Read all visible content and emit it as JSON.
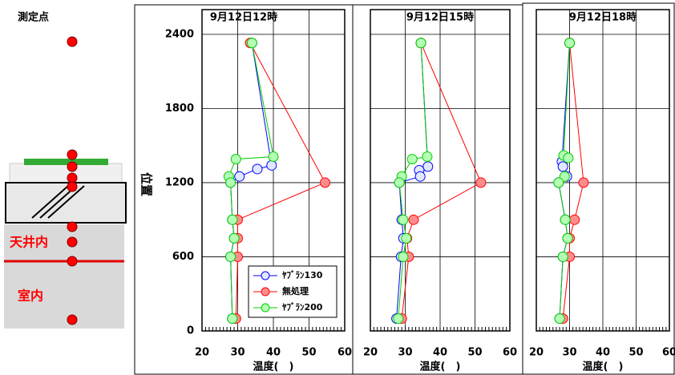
{
  "diagram": {
    "title": "測定点",
    "labels": [
      "天井内",
      "室内"
    ]
  },
  "chart_data": [
    {
      "type": "line",
      "title": "9月12日12時",
      "x_label": "温度(　)",
      "y_label": "位置",
      "xlim": [
        20,
        60
      ],
      "xticks": [
        20,
        30,
        40,
        50,
        60
      ],
      "ylim": [
        0,
        2600
      ],
      "yticks": [
        0,
        600,
        1200,
        1800,
        2400
      ],
      "ytick_labels": true,
      "grid": true,
      "legend": true,
      "series": [
        {
          "name": "ﾔﾌﾞﾗﾝ130",
          "color": "#0000ff",
          "fill": "#e0e8ff",
          "x": [
            34,
            39.5,
            35.5,
            30.5,
            28,
            28.5,
            29,
            28,
            28.5
          ],
          "values": [
            2330,
            1340,
            1310,
            1250,
            1200,
            900,
            750,
            600,
            100
          ]
        },
        {
          "name": "無処理",
          "color": "#ff0000",
          "fill": "#ff8c8c",
          "x": [
            33.5,
            54.5,
            30,
            30,
            30,
            29.5
          ],
          "values": [
            2330,
            1200,
            900,
            750,
            600,
            100
          ]
        },
        {
          "name": "ﾔﾌﾞﾗﾝ200",
          "color": "#00cc00",
          "fill": "#b4ffb4",
          "x": [
            34,
            40,
            29.5,
            27.5,
            28,
            28.5,
            29,
            28,
            28.5
          ],
          "values": [
            2330,
            1410,
            1390,
            1250,
            1200,
            900,
            750,
            600,
            100
          ]
        }
      ]
    },
    {
      "type": "line",
      "title": "9月12日15時",
      "x_label": "温度(　)",
      "xlim": [
        20,
        60
      ],
      "xticks": [
        20,
        30,
        40,
        50,
        60
      ],
      "ylim": [
        0,
        2600
      ],
      "yticks": [
        0,
        600,
        1200,
        1800,
        2400
      ],
      "ytick_labels": false,
      "grid": true,
      "legend": false,
      "series": [
        {
          "name": "ﾔﾌﾞﾗﾝ130",
          "color": "#0000ff",
          "fill": "#e0e8ff",
          "x": [
            34.5,
            36.5,
            34,
            34.3,
            28.3,
            29,
            29.5,
            28.8,
            27.5
          ],
          "values": [
            2330,
            1330,
            1300,
            1250,
            1200,
            900,
            750,
            600,
            100
          ]
        },
        {
          "name": "無処理",
          "color": "#ff0000",
          "fill": "#ff8c8c",
          "x": [
            34.5,
            51.7,
            32.4,
            30.5,
            31,
            29
          ],
          "values": [
            2330,
            1200,
            900,
            750,
            600,
            100
          ]
        },
        {
          "name": "ﾔﾌﾞﾗﾝ200",
          "color": "#00cc00",
          "fill": "#b4ffb4",
          "x": [
            34.5,
            36.3,
            32,
            29,
            28.3,
            29.4,
            30.3,
            29.4,
            28
          ],
          "values": [
            2330,
            1410,
            1390,
            1250,
            1200,
            900,
            750,
            600,
            100
          ]
        }
      ]
    },
    {
      "type": "line",
      "title": "9月12日18時",
      "x_label": "温度(　)",
      "xlim": [
        20,
        60
      ],
      "xticks": [
        20,
        30,
        40,
        50,
        60
      ],
      "ylim": [
        0,
        2600
      ],
      "yticks": [
        0,
        600,
        1200,
        1800,
        2400
      ],
      "ytick_labels": false,
      "grid": true,
      "legend": false,
      "series": [
        {
          "name": "ﾔﾌﾞﾗﾝ130",
          "color": "#0000ff",
          "fill": "#e0e8ff",
          "x": [
            30,
            27.7,
            28,
            29.2,
            26.7,
            28.7,
            29.4,
            28,
            27
          ],
          "values": [
            2330,
            1370,
            1330,
            1250,
            1200,
            900,
            750,
            600,
            100
          ]
        },
        {
          "name": "無処理",
          "color": "#ff0000",
          "fill": "#ff8c8c",
          "x": [
            30,
            34.2,
            31.5,
            30,
            30,
            28
          ],
          "values": [
            2330,
            1200,
            900,
            750,
            600,
            100
          ]
        },
        {
          "name": "ﾔﾌﾞﾗﾝ200",
          "color": "#00cc00",
          "fill": "#b4ffb4",
          "x": [
            30,
            28.2,
            29.6,
            28.5,
            26.7,
            28.7,
            29.4,
            28,
            27
          ],
          "values": [
            2330,
            1420,
            1400,
            1250,
            1200,
            900,
            750,
            600,
            100
          ]
        }
      ]
    }
  ]
}
